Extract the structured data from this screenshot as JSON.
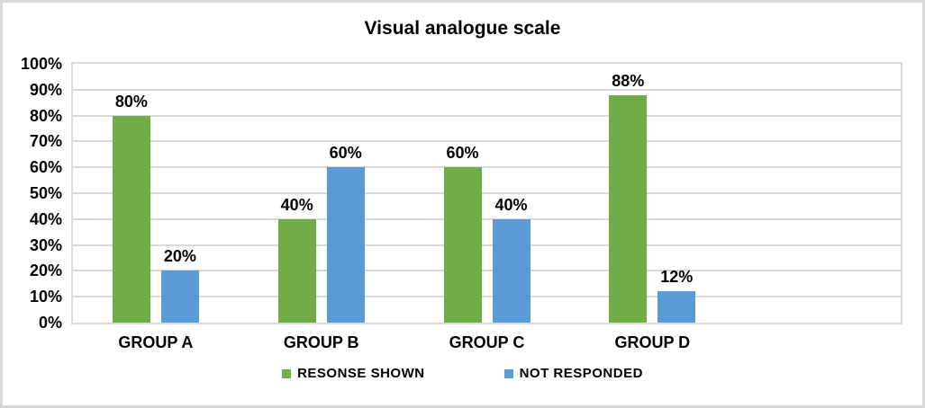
{
  "chart_data": {
    "type": "bar",
    "title": "Visual analogue scale",
    "categories": [
      "GROUP A",
      "GROUP B",
      "GROUP C",
      "GROUP D"
    ],
    "series": [
      {
        "name": "RESONSE SHOWN",
        "color": "#70AD47",
        "values": [
          80,
          40,
          60,
          88
        ]
      },
      {
        "name": "NOT RESPONDED",
        "color": "#5B9BD5",
        "values": [
          20,
          60,
          40,
          12
        ]
      }
    ],
    "data_labels": [
      [
        "80%",
        "40%",
        "60%",
        "88%"
      ],
      [
        "20%",
        "60%",
        "40%",
        "12%"
      ]
    ],
    "xlabel": "",
    "ylabel": "",
    "ylim": [
      0,
      100
    ],
    "ytick_step": 10,
    "ytick_labels": [
      "0%",
      "10%",
      "20%",
      "30%",
      "40%",
      "50%",
      "60%",
      "70%",
      "80%",
      "90%",
      "100%"
    ],
    "grid": true,
    "gridline_color": "#D9D9D9",
    "plot_border_color": "#D9D9D9",
    "legend_position": "bottom"
  }
}
